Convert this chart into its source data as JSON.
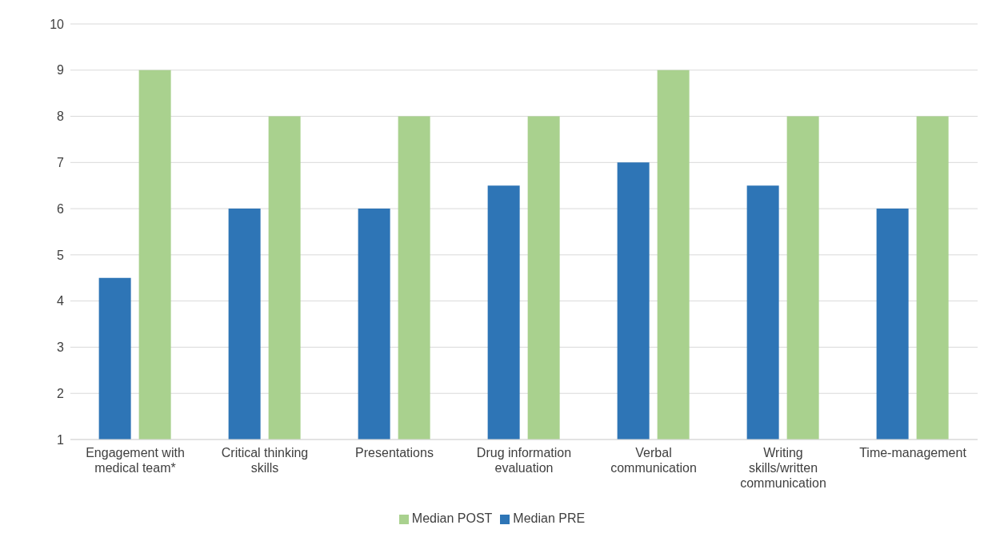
{
  "chart_data": {
    "type": "bar",
    "categories": [
      "Engagement with medical team*",
      "Critical thinking skills",
      "Presentations",
      "Drug information evaluation",
      "Verbal communication",
      "Writing skills/written communication",
      "Time-management"
    ],
    "series": [
      {
        "name": "Median PRE",
        "color": "#2e75b6",
        "values": [
          4.5,
          6,
          6,
          6.5,
          7,
          6.5,
          6
        ]
      },
      {
        "name": "Median POST",
        "color": "#a9d18e",
        "values": [
          9,
          8,
          8,
          8,
          9,
          8,
          8
        ]
      }
    ],
    "ylim": [
      1,
      10
    ],
    "yticks": [
      1,
      2,
      3,
      4,
      5,
      6,
      7,
      8,
      9,
      10
    ],
    "grid": "y",
    "legend": "bottom"
  }
}
